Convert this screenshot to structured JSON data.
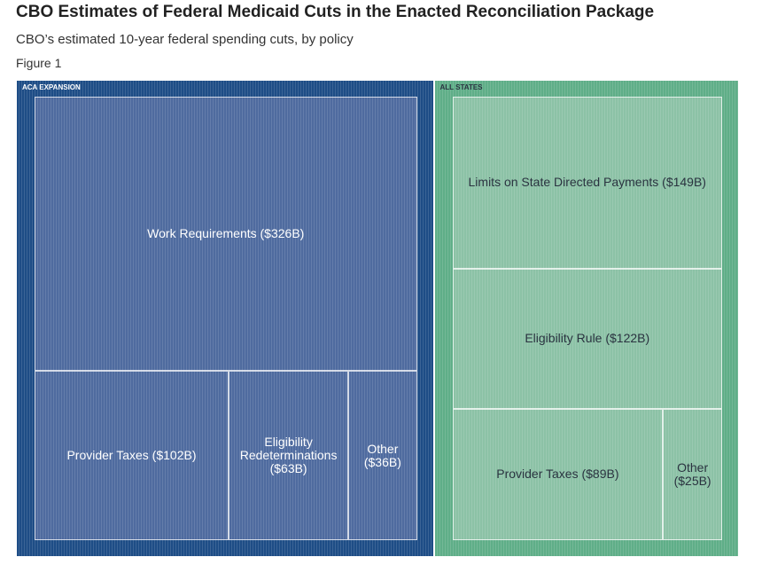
{
  "chart_data": {
    "type": "treemap",
    "title": "CBO Estimates of Federal Medicaid Cuts in the Enacted Reconciliation Package",
    "subtitle": "CBO’s estimated 10-year federal spending cuts, by policy",
    "caption": "Figure 1",
    "series": [
      {
        "name": "ACA EXPANSION",
        "color": "#1e4d86",
        "cell_color": "#4f6b9f",
        "categories": [
          "Work Requirements",
          "Provider Taxes",
          "Eligibility Redeterminations",
          "Other"
        ],
        "values": [
          326,
          102,
          63,
          36
        ],
        "value_labels": [
          "Work Requirements ($326B)",
          "Provider Taxes ($102B)",
          "Eligibility Redeterminations ($63B)",
          "Other ($36B)"
        ]
      },
      {
        "name": "ALL STATES",
        "color": "#5fae88",
        "cell_color": "#8cc2a6",
        "categories": [
          "Limits on State Directed Payments",
          "Eligibility Rule",
          "Provider Taxes",
          "Other"
        ],
        "values": [
          149,
          122,
          89,
          25
        ],
        "value_labels": [
          "Limits on State Directed Payments ($149B)",
          "Eligibility Rule ($122B)",
          "Provider Taxes ($89B)",
          "Other ($25B)"
        ]
      }
    ]
  }
}
